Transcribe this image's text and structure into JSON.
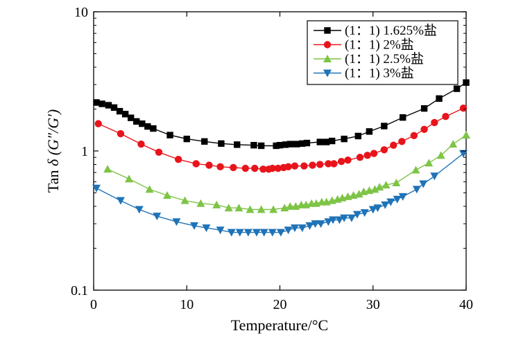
{
  "chart_data": {
    "type": "scatter",
    "xlabel": "Temperature/°C",
    "ylabel": "Tan δ (G″/G′)",
    "ylabel_prefix": "Tan ",
    "ylabel_symbol": "δ",
    "ylabel_ratio": " (G″/G′)",
    "xlim": [
      0,
      40
    ],
    "ylim": [
      0.1,
      10
    ],
    "y_scale": "log",
    "grid": false,
    "legend_position": "top-right",
    "x_ticks": [
      0,
      10,
      20,
      30,
      40
    ],
    "x_tick_labels": [
      "0",
      "10",
      "20",
      "30",
      "40"
    ],
    "y_ticks": [
      0.1,
      1,
      10
    ],
    "y_tick_labels": [
      "0.1",
      "1",
      "10"
    ],
    "series": [
      {
        "name": "(1：1) 1.625%盐",
        "color": "#000000",
        "marker": "square",
        "x": [
          0.3,
          0.9,
          1.6,
          2.2,
          2.8,
          3.4,
          4.0,
          4.6,
          5.2,
          5.8,
          6.4,
          8.2,
          10.0,
          11.9,
          13.7,
          15.4,
          17.2,
          18.0,
          19.6,
          20.0,
          20.6,
          21.1,
          21.8,
          22.4,
          22.9,
          24.3,
          25.0,
          25.6,
          26.9,
          28.4,
          29.6,
          31.2,
          33.2,
          35.5,
          37.1,
          39.0,
          40.0
        ],
        "y": [
          2.23,
          2.18,
          2.13,
          2.05,
          1.93,
          1.84,
          1.73,
          1.63,
          1.57,
          1.5,
          1.45,
          1.3,
          1.22,
          1.17,
          1.13,
          1.11,
          1.1,
          1.09,
          1.09,
          1.1,
          1.11,
          1.12,
          1.12,
          1.13,
          1.14,
          1.16,
          1.16,
          1.18,
          1.22,
          1.28,
          1.38,
          1.51,
          1.74,
          2.02,
          2.38,
          2.8,
          3.1
        ]
      },
      {
        "name": "(1：1) 2%盐",
        "color": "#e8141b",
        "marker": "circle",
        "x": [
          0.5,
          2.9,
          5.1,
          7.0,
          9.1,
          11.0,
          12.4,
          13.6,
          15.0,
          16.3,
          17.3,
          18.2,
          18.8,
          19.2,
          19.8,
          20.4,
          20.9,
          21.6,
          22.6,
          23.5,
          24.3,
          25.2,
          25.8,
          26.6,
          27.3,
          28.6,
          29.4,
          30.1,
          31.2,
          32.2,
          33.1,
          34.4,
          35.5,
          36.6,
          37.8,
          39.7
        ],
        "y": [
          1.57,
          1.33,
          1.12,
          0.98,
          0.87,
          0.81,
          0.79,
          0.77,
          0.76,
          0.75,
          0.75,
          0.74,
          0.74,
          0.75,
          0.75,
          0.76,
          0.77,
          0.78,
          0.78,
          0.79,
          0.8,
          0.81,
          0.81,
          0.84,
          0.86,
          0.9,
          0.93,
          0.96,
          1.02,
          1.1,
          1.17,
          1.29,
          1.43,
          1.6,
          1.77,
          2.03
        ]
      },
      {
        "name": "(1：1) 2.5%盐",
        "color": "#7ec446",
        "marker": "triangle-up",
        "x": [
          1.5,
          3.8,
          6.0,
          7.9,
          9.8,
          11.5,
          13.2,
          14.5,
          15.6,
          16.8,
          18.0,
          19.3,
          20.5,
          21.1,
          21.7,
          22.3,
          22.8,
          23.4,
          23.9,
          24.5,
          25.0,
          25.6,
          26.2,
          26.7,
          27.3,
          27.9,
          28.5,
          29.0,
          29.6,
          30.2,
          30.7,
          31.4,
          32.5,
          34.6,
          36.0,
          37.3,
          38.6,
          40.0
        ],
        "y": [
          0.74,
          0.63,
          0.53,
          0.48,
          0.44,
          0.42,
          0.41,
          0.39,
          0.39,
          0.38,
          0.38,
          0.38,
          0.39,
          0.4,
          0.4,
          0.41,
          0.41,
          0.42,
          0.42,
          0.43,
          0.43,
          0.44,
          0.45,
          0.46,
          0.47,
          0.48,
          0.49,
          0.51,
          0.52,
          0.53,
          0.55,
          0.57,
          0.59,
          0.73,
          0.82,
          0.93,
          1.12,
          1.3
        ]
      },
      {
        "name": "(1：1) 3%盐",
        "color": "#1f73b7",
        "marker": "triangle-down",
        "x": [
          0.3,
          2.9,
          4.9,
          6.8,
          8.9,
          10.8,
          12.1,
          13.6,
          14.8,
          15.7,
          16.6,
          17.5,
          18.3,
          19.2,
          20.1,
          20.9,
          21.6,
          22.4,
          23.2,
          23.8,
          24.4,
          25.2,
          25.7,
          26.4,
          26.9,
          27.7,
          28.3,
          29.1,
          30.0,
          30.5,
          31.3,
          31.9,
          32.6,
          33.2,
          34.7,
          35.4,
          36.6,
          39.7
        ],
        "y": [
          0.54,
          0.44,
          0.38,
          0.34,
          0.31,
          0.29,
          0.28,
          0.27,
          0.26,
          0.26,
          0.26,
          0.26,
          0.26,
          0.26,
          0.26,
          0.27,
          0.28,
          0.28,
          0.29,
          0.3,
          0.3,
          0.31,
          0.32,
          0.32,
          0.33,
          0.33,
          0.35,
          0.36,
          0.38,
          0.39,
          0.41,
          0.43,
          0.45,
          0.47,
          0.53,
          0.58,
          0.66,
          0.96
        ]
      }
    ]
  }
}
